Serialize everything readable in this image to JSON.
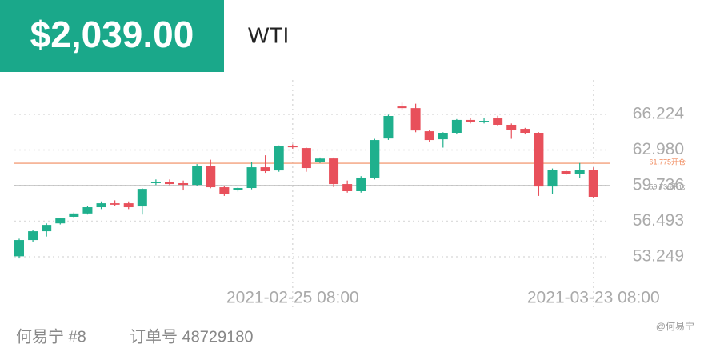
{
  "header": {
    "balance": "$2,039.00",
    "symbol": "WTI"
  },
  "footer": {
    "user": "何易宁 #8",
    "order": "订单号 48729180",
    "watermark": "@何易宁"
  },
  "chart_data": {
    "type": "candlestick",
    "up_color": "#1fb08d",
    "down_color": "#e8505b",
    "categories": [
      null,
      null,
      null,
      null,
      null,
      null,
      null,
      null,
      null,
      null,
      null,
      null,
      null,
      null,
      null,
      null,
      null,
      null,
      null,
      null,
      "2021-02-25 08:00",
      null,
      null,
      null,
      null,
      null,
      null,
      null,
      null,
      null,
      null,
      null,
      null,
      null,
      null,
      null,
      null,
      null,
      null,
      null,
      null,
      null,
      "2021-03-23 08:00"
    ],
    "open": [
      53.3,
      54.78,
      55.58,
      56.3,
      56.9,
      57.2,
      57.77,
      58.13,
      58.13,
      57.84,
      59.96,
      60.1,
      59.96,
      59.81,
      61.56,
      59.59,
      59.37,
      59.52,
      61.41,
      61.12,
      63.38,
      63.16,
      61.92,
      62.21,
      59.88,
      59.23,
      60.47,
      64.03,
      66.95,
      66.8,
      64.69,
      63.96,
      64.55,
      65.72,
      65.5,
      65.86,
      65.28,
      64.91,
      64.55,
      59.66,
      61.05,
      60.83,
      61.19
    ],
    "high": [
      54.9,
      55.7,
      56.3,
      56.8,
      57.3,
      57.9,
      58.3,
      58.4,
      58.3,
      59.5,
      60.3,
      60.3,
      60.2,
      61.7,
      62.1,
      59.7,
      59.6,
      61.9,
      62.5,
      63.4,
      63.5,
      63.2,
      62.3,
      62.3,
      60.2,
      60.6,
      64.0,
      66.2,
      67.3,
      67.2,
      64.8,
      64.6,
      65.8,
      65.9,
      65.9,
      66.1,
      65.4,
      65.0,
      64.6,
      61.3,
      61.2,
      61.8,
      61.4
    ],
    "low": [
      53.1,
      54.6,
      55.1,
      56.2,
      56.8,
      57.1,
      57.6,
      57.9,
      57.6,
      57.1,
      59.8,
      59.8,
      59.3,
      59.7,
      59.5,
      58.8,
      59.2,
      59.4,
      60.9,
      61.0,
      63.1,
      61.0,
      61.8,
      59.6,
      59.1,
      59.1,
      60.3,
      63.9,
      66.6,
      64.6,
      63.7,
      63.2,
      64.4,
      65.4,
      65.4,
      65.2,
      64.0,
      64.4,
      58.8,
      59.0,
      60.7,
      60.4,
      58.6
    ],
    "close": [
      54.78,
      55.58,
      56.16,
      56.75,
      57.2,
      57.77,
      58.13,
      58.0,
      57.77,
      59.44,
      60.1,
      59.88,
      59.81,
      61.56,
      59.59,
      59.0,
      59.52,
      61.41,
      61.05,
      63.31,
      63.23,
      61.34,
      62.2,
      59.88,
      59.23,
      60.47,
      63.89,
      66.08,
      66.8,
      64.76,
      63.89,
      64.55,
      65.72,
      65.5,
      65.64,
      65.28,
      64.84,
      64.55,
      59.66,
      61.19,
      60.83,
      61.19,
      58.72
    ],
    "ylim": [
      51.14,
      69.36
    ],
    "yticks": [
      66.224,
      {
        "value": 62.98,
        "label": "62.980"
      },
      59.736,
      56.493,
      53.249
    ],
    "grid": true,
    "reference_lines": [
      {
        "value": 61.775,
        "label": "61.775开仓",
        "color": "#f08a5d"
      },
      {
        "value": 59.736,
        "label": "59.736平仓",
        "color": "#9a9a9a"
      }
    ]
  }
}
